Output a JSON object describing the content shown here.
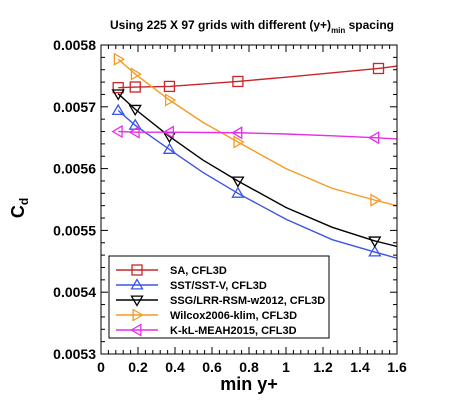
{
  "chart_data": {
    "type": "line",
    "title": "Using 225 X 97 grids with different (y+)",
    "title_subscript": "min",
    "title_suffix": " spacing",
    "xlabel": "min y+",
    "ylabel": "C",
    "ylabel_subscript": "d",
    "xlim": [
      0,
      1.6
    ],
    "ylim": [
      0.0053,
      0.0058
    ],
    "xticks": [
      0,
      0.2,
      0.4,
      0.6,
      0.8,
      1,
      1.2,
      1.4,
      1.6
    ],
    "xtick_labels": [
      "0",
      "0.2",
      "0.4",
      "0.6",
      "0.8",
      "1",
      "1.2",
      "1.4",
      "1.6"
    ],
    "yticks": [
      0.0053,
      0.0054,
      0.0055,
      0.0056,
      0.0057,
      0.0058
    ],
    "ytick_labels": [
      "0.0053",
      "0.0054",
      "0.0055",
      "0.0056",
      "0.0057",
      "0.0058"
    ],
    "grid": false,
    "legend_position": "bottom-left",
    "series": [
      {
        "name": "SA, CFL3D",
        "color": "#c8262a",
        "marker": "square",
        "x": [
          0.093,
          0.185,
          0.37,
          0.74,
          1.5
        ],
        "y": [
          0.005731,
          0.005732,
          0.005733,
          0.005741,
          0.005762
        ],
        "curve_x": [
          0.093,
          0.185,
          0.37,
          0.74,
          1.0,
          1.25,
          1.5,
          1.6
        ],
        "curve_y": [
          0.005731,
          0.005732,
          0.005733,
          0.005741,
          0.005748,
          0.005755,
          0.005762,
          0.005766
        ]
      },
      {
        "name": "SST/SST-V, CFL3D",
        "color": "#3b55e6",
        "marker": "triangle-up",
        "x": [
          0.093,
          0.185,
          0.37,
          0.74,
          1.48
        ],
        "y": [
          0.005694,
          0.00567,
          0.005631,
          0.00556,
          0.005465
        ],
        "curve_x": [
          0.093,
          0.185,
          0.37,
          0.55,
          0.74,
          1.0,
          1.25,
          1.48,
          1.6
        ],
        "curve_y": [
          0.005694,
          0.00567,
          0.005631,
          0.005594,
          0.00556,
          0.005518,
          0.005485,
          0.005465,
          0.005455
        ]
      },
      {
        "name": "SSG/LRR-RSM-w2012, CFL3D",
        "color": "#000000",
        "marker": "triangle-down",
        "x": [
          0.093,
          0.185,
          0.37,
          0.74,
          1.48
        ],
        "y": [
          0.005721,
          0.005696,
          0.005652,
          0.00558,
          0.005483
        ],
        "curve_x": [
          0.093,
          0.185,
          0.37,
          0.55,
          0.74,
          1.0,
          1.25,
          1.48,
          1.6
        ],
        "curve_y": [
          0.005721,
          0.005696,
          0.005652,
          0.005614,
          0.00558,
          0.005537,
          0.005505,
          0.005483,
          0.005474
        ]
      },
      {
        "name": "Wilcox2006-klim, CFL3D",
        "color": "#f59a23",
        "marker": "triangle-right",
        "x": [
          0.093,
          0.185,
          0.37,
          0.74,
          1.48
        ],
        "y": [
          0.005777,
          0.005753,
          0.005711,
          0.005643,
          0.005549
        ],
        "curve_x": [
          0.093,
          0.185,
          0.37,
          0.55,
          0.74,
          1.0,
          1.25,
          1.48,
          1.6
        ],
        "curve_y": [
          0.005777,
          0.005753,
          0.005711,
          0.005675,
          0.005643,
          0.0056,
          0.005568,
          0.005549,
          0.00554
        ]
      },
      {
        "name": "K-kL-MEAH2015, CFL3D",
        "color": "#e62ee6",
        "marker": "triangle-left",
        "x": [
          0.093,
          0.185,
          0.37,
          0.74,
          1.48
        ],
        "y": [
          0.00566,
          0.005659,
          0.005659,
          0.005658,
          0.00565
        ],
        "curve_x": [
          0.093,
          0.185,
          0.37,
          0.74,
          1.0,
          1.25,
          1.48,
          1.6
        ],
        "curve_y": [
          0.00566,
          0.005659,
          0.005659,
          0.005658,
          0.005656,
          0.005653,
          0.00565,
          0.005648
        ]
      }
    ]
  }
}
